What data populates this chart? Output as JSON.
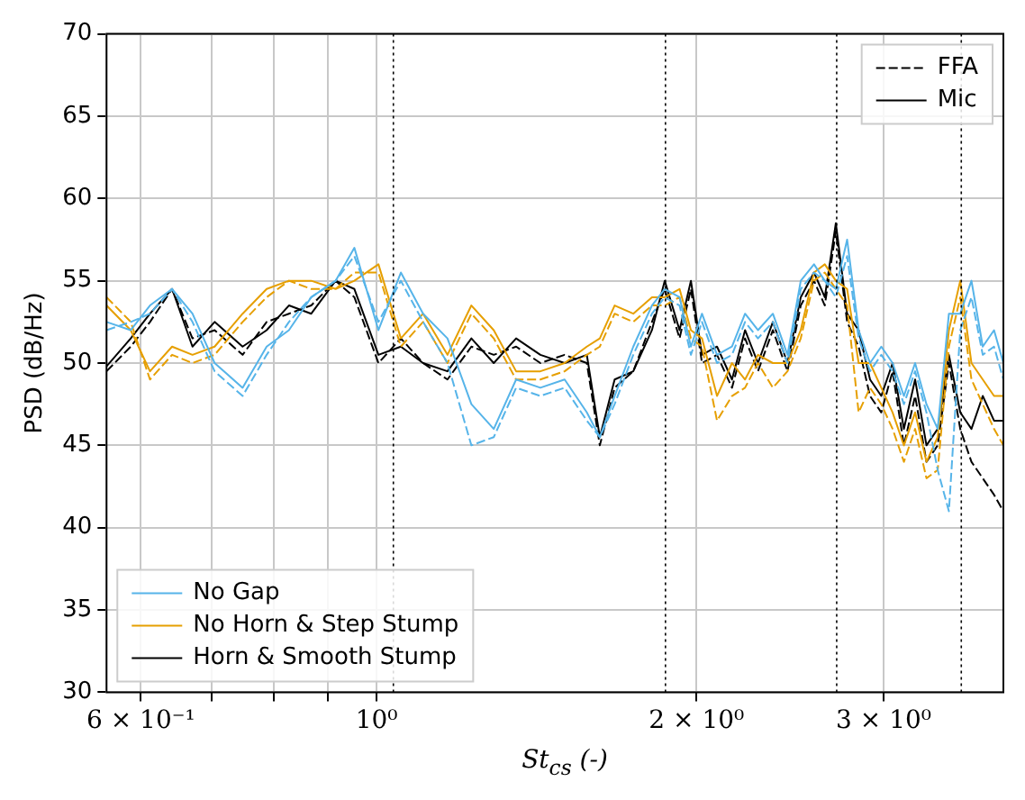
{
  "chart_data": {
    "type": "line",
    "xlabel": "St$_{cs}$ (-)",
    "ylabel": "PSD (dB/Hz)",
    "log": "x",
    "grid": true,
    "legend": "bottom left",
    "xlim": [
      0.557,
      3.889
    ],
    "ylim": [
      30,
      70
    ],
    "xticks": [
      {
        "value": 0.6,
        "label": "6 × 10⁻¹"
      },
      {
        "value": 0.7,
        "label": null
      },
      {
        "value": 0.8,
        "label": null
      },
      {
        "value": 0.9,
        "label": null
      },
      {
        "value": 1,
        "label": "10⁰"
      },
      {
        "value": 2,
        "label": "2 × 10⁰"
      },
      {
        "value": 3,
        "label": "3 × 10⁰"
      }
    ],
    "yticks": [
      30,
      35,
      40,
      45,
      50,
      55,
      60,
      65,
      70
    ],
    "x": [
      0.557,
      0.587,
      0.612,
      0.642,
      0.671,
      0.704,
      0.748,
      0.788,
      0.827,
      0.868,
      0.915,
      0.953,
      1.004,
      1.054,
      1.106,
      1.166,
      1.228,
      1.289,
      1.353,
      1.426,
      1.503,
      1.577,
      1.622,
      1.675,
      1.744,
      1.816,
      1.867,
      1.928,
      1.976,
      2.024,
      2.091,
      2.16,
      2.222,
      2.285,
      2.36,
      2.436,
      2.507,
      2.58,
      2.641,
      2.705,
      2.772,
      2.842,
      2.913,
      2.985,
      3.059,
      3.135,
      3.212,
      3.292,
      3.373,
      3.456,
      3.542,
      3.629,
      3.719,
      3.811,
      3.889
    ],
    "ref_lines": [
      {
        "axis": "x",
        "value": 1.037,
        "line_style": "dotted",
        "color": "#000000"
      },
      {
        "axis": "x",
        "value": 1.87,
        "line_style": "dotted",
        "color": "#000000"
      },
      {
        "axis": "x",
        "value": 2.71,
        "line_style": "dotted",
        "color": "#000000"
      },
      {
        "axis": "x",
        "value": 3.55,
        "line_style": "dotted",
        "color": "#000000"
      }
    ],
    "series": [
      {
        "name": "No Gap",
        "color": "#56b4e9",
        "line_style": "solid",
        "values": [
          52.5,
          52,
          53.5,
          54.5,
          53,
          50,
          48.5,
          51,
          52,
          54,
          55,
          57,
          52,
          55.5,
          53,
          51.5,
          47.5,
          46,
          49,
          48.5,
          49,
          47,
          45.5,
          48,
          51,
          53.5,
          54.5,
          54,
          51,
          53,
          50.5,
          51,
          53,
          52,
          53,
          50.5,
          55,
          56,
          55,
          54.5,
          57.5,
          52,
          50,
          51,
          50,
          48,
          50,
          47.5,
          46,
          53,
          53,
          55,
          51,
          52,
          50
        ]
      },
      {
        "color": "#56b4e9",
        "line_style": "dashed",
        "values": [
          52,
          52.5,
          53,
          54.5,
          52.5,
          49.5,
          48,
          50.5,
          52.5,
          54,
          55,
          56.5,
          52.5,
          55,
          52.5,
          50,
          45,
          45.5,
          48.5,
          48,
          48.5,
          46.5,
          45.5,
          47.5,
          50.5,
          53,
          54,
          53.5,
          50.5,
          52.5,
          50,
          50.5,
          52.5,
          51.5,
          52.5,
          50,
          54.5,
          55.5,
          55,
          54,
          56.5,
          51.5,
          49.5,
          50.5,
          49.5,
          47.5,
          49.5,
          47,
          43.5,
          41,
          52,
          54,
          50.5,
          51,
          49
        ]
      },
      {
        "name": "No Horn & Step Stump",
        "color": "#e69f00",
        "line_style": "solid",
        "values": [
          53.5,
          52,
          49.5,
          51,
          50.5,
          51,
          53,
          54.5,
          55,
          55,
          54.5,
          55,
          56,
          51.5,
          53,
          50.5,
          53.5,
          52,
          49.5,
          49.5,
          50,
          51,
          51.5,
          53.5,
          53,
          54,
          54,
          54.5,
          52,
          51.5,
          48,
          50,
          49,
          50.5,
          50,
          50,
          52,
          55.5,
          56,
          55,
          54.5,
          50,
          50,
          48.5,
          47,
          45,
          47,
          44,
          45.5,
          52,
          55,
          50,
          49,
          48,
          48
        ]
      },
      {
        "color": "#e69f00",
        "line_style": "dashed",
        "values": [
          54,
          52.5,
          49,
          50.5,
          50,
          50.5,
          52.5,
          54,
          55,
          54.5,
          54.5,
          55.5,
          55.5,
          51,
          52.5,
          50,
          53,
          51.5,
          49,
          49,
          49.5,
          50.5,
          51,
          53,
          52.5,
          53.5,
          53.5,
          54,
          51.5,
          51,
          46.5,
          48,
          48.5,
          50,
          48.5,
          49.5,
          51.5,
          55,
          55.5,
          54.5,
          53.5,
          47,
          48.5,
          47.5,
          46,
          44,
          46,
          43,
          43.5,
          51,
          54,
          49,
          47.5,
          46,
          45
        ]
      },
      {
        "name": "Horn & Smooth Stump",
        "color": "#000000",
        "line_style": "solid",
        "values": [
          49.8,
          51.5,
          53,
          54.5,
          51,
          52.5,
          51,
          52,
          53.5,
          53,
          55,
          54.5,
          50.5,
          51,
          50,
          49.5,
          51.5,
          50,
          51.5,
          50.5,
          50,
          50.5,
          45.5,
          49,
          49.5,
          52,
          55,
          52,
          55,
          50.5,
          51,
          49,
          52,
          50,
          52.5,
          50,
          54,
          55.5,
          54,
          58.5,
          53,
          52,
          49,
          48,
          50,
          46,
          49,
          45,
          46,
          50.5,
          47,
          46,
          48,
          46.5,
          46.5
        ]
      },
      {
        "color": "#000000",
        "line_style": "dashed",
        "values": [
          49.5,
          51,
          52.5,
          54.5,
          51.5,
          52,
          50.5,
          52.5,
          53,
          53.5,
          55,
          54,
          50,
          51.5,
          50,
          49,
          51,
          50.5,
          51,
          50,
          50.5,
          50,
          45,
          48.5,
          49.5,
          52.5,
          54.5,
          51.5,
          54.5,
          50,
          50.5,
          48.5,
          51.5,
          49.5,
          52,
          49.5,
          53.5,
          55,
          53.5,
          58,
          52.5,
          51,
          48,
          47,
          49.5,
          45,
          48,
          44,
          45,
          50,
          46,
          44,
          43,
          42,
          41
        ]
      },
      {
        "name": "FFA",
        "color": "#000000",
        "line_style": "dashed",
        "values": [
          null,
          null,
          null,
          null,
          null,
          null,
          null,
          null,
          null,
          null,
          null,
          null,
          null,
          null,
          null,
          null,
          null,
          null,
          null,
          null,
          null,
          null,
          null,
          null,
          null,
          null,
          null,
          null,
          null,
          null,
          null,
          null,
          null,
          null,
          null,
          null,
          null,
          null,
          null,
          null,
          null,
          null,
          null,
          null,
          null,
          null,
          null,
          null,
          null,
          null,
          null,
          null,
          null,
          null,
          null
        ]
      },
      {
        "name": "Mic",
        "color": "#000000",
        "line_style": "solid",
        "values": [
          null,
          null,
          null,
          null,
          null,
          null,
          null,
          null,
          null,
          null,
          null,
          null,
          null,
          null,
          null,
          null,
          null,
          null,
          null,
          null,
          null,
          null,
          null,
          null,
          null,
          null,
          null,
          null,
          null,
          null,
          null,
          null,
          null,
          null,
          null,
          null,
          null,
          null,
          null,
          null,
          null,
          null,
          null,
          null,
          null,
          null,
          null,
          null,
          null,
          null,
          null,
          null,
          null,
          null,
          null
        ]
      }
    ]
  }
}
